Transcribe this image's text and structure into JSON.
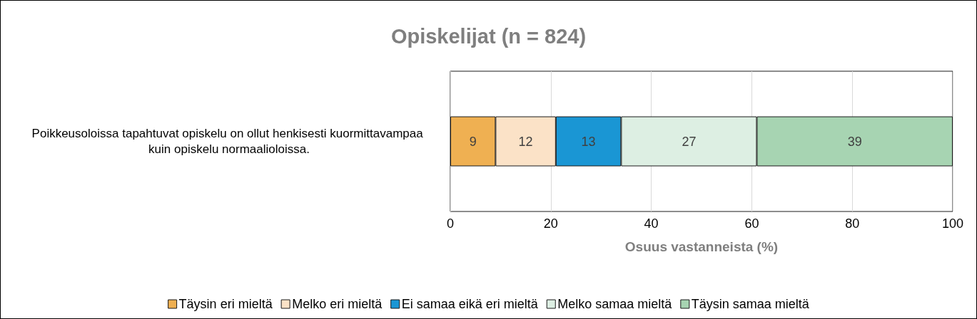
{
  "chart_data": {
    "type": "bar",
    "orientation": "horizontal",
    "stacked": true,
    "title": "Opiskelijat (n = 824)",
    "xlabel": "Osuus vastanneista (%)",
    "categories": [
      "Poikkeusoloissa tapahtuvat opiskelu on ollut henkisesti kuormittavampaa kuin opiskelu normaalioloissa."
    ],
    "series": [
      {
        "name": "Täysin eri mieltä",
        "color": "#efb052",
        "values": [
          9
        ]
      },
      {
        "name": "Melko eri mieltä",
        "color": "#fbe2c7",
        "values": [
          12
        ]
      },
      {
        "name": "Ei samaa eikä eri mieltä",
        "color": "#1a96d4",
        "values": [
          13
        ]
      },
      {
        "name": "Melko samaa mieltä",
        "color": "#ddefe3",
        "values": [
          27
        ]
      },
      {
        "name": "Täysin samaa mieltä",
        "color": "#a7d4b2",
        "values": [
          39
        ]
      }
    ],
    "xlim": [
      0,
      100
    ],
    "xticks": [
      0,
      20,
      40,
      60,
      80,
      100
    ],
    "grid": "x",
    "legend": "bottom",
    "data_labels": true
  }
}
